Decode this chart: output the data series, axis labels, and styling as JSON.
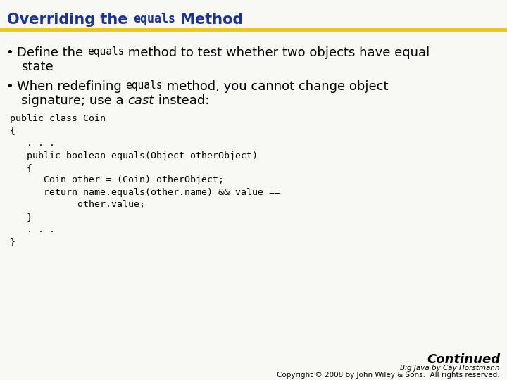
{
  "bg_color": "#f8f8f4",
  "title_color": "#1a3399",
  "title_fontsize": 15,
  "title_mono_fontsize": 12,
  "title_text1": "Overriding the ",
  "title_text2": "equals",
  "title_text3": " Method",
  "underline_color": "#f0c800",
  "bullet_color": "#000000",
  "bullet_fontsize": 13,
  "bullet_mono_fontsize": 10.5,
  "b1_text1": "Define the ",
  "b1_text2": "equals",
  "b1_text3": " method to test whether two objects have equal",
  "b1_text4": "state",
  "b2_text1": "When redefining ",
  "b2_text2": "equals",
  "b2_text3": " method, you cannot change object",
  "b2_text4": "signature; use a ",
  "b2_text5": "cast",
  "b2_text6": " instead:",
  "code_lines": [
    "public class Coin",
    "{",
    "   . . .",
    "   public boolean equals(Object otherObject)",
    "   {",
    "      Coin other = (Coin) otherObject;",
    "      return name.equals(other.name) && value ==",
    "            other.value;",
    "   }",
    "   . . .",
    "}"
  ],
  "code_fontsize": 9.5,
  "continued_text": "Continued",
  "continued_fontsize": 13,
  "footer_line1": "Big Java by Cay Horstmann",
  "footer_line2": "Copyright © 2008 by John Wiley & Sons.  All rights reserved.",
  "footer_fontsize": 7.5
}
